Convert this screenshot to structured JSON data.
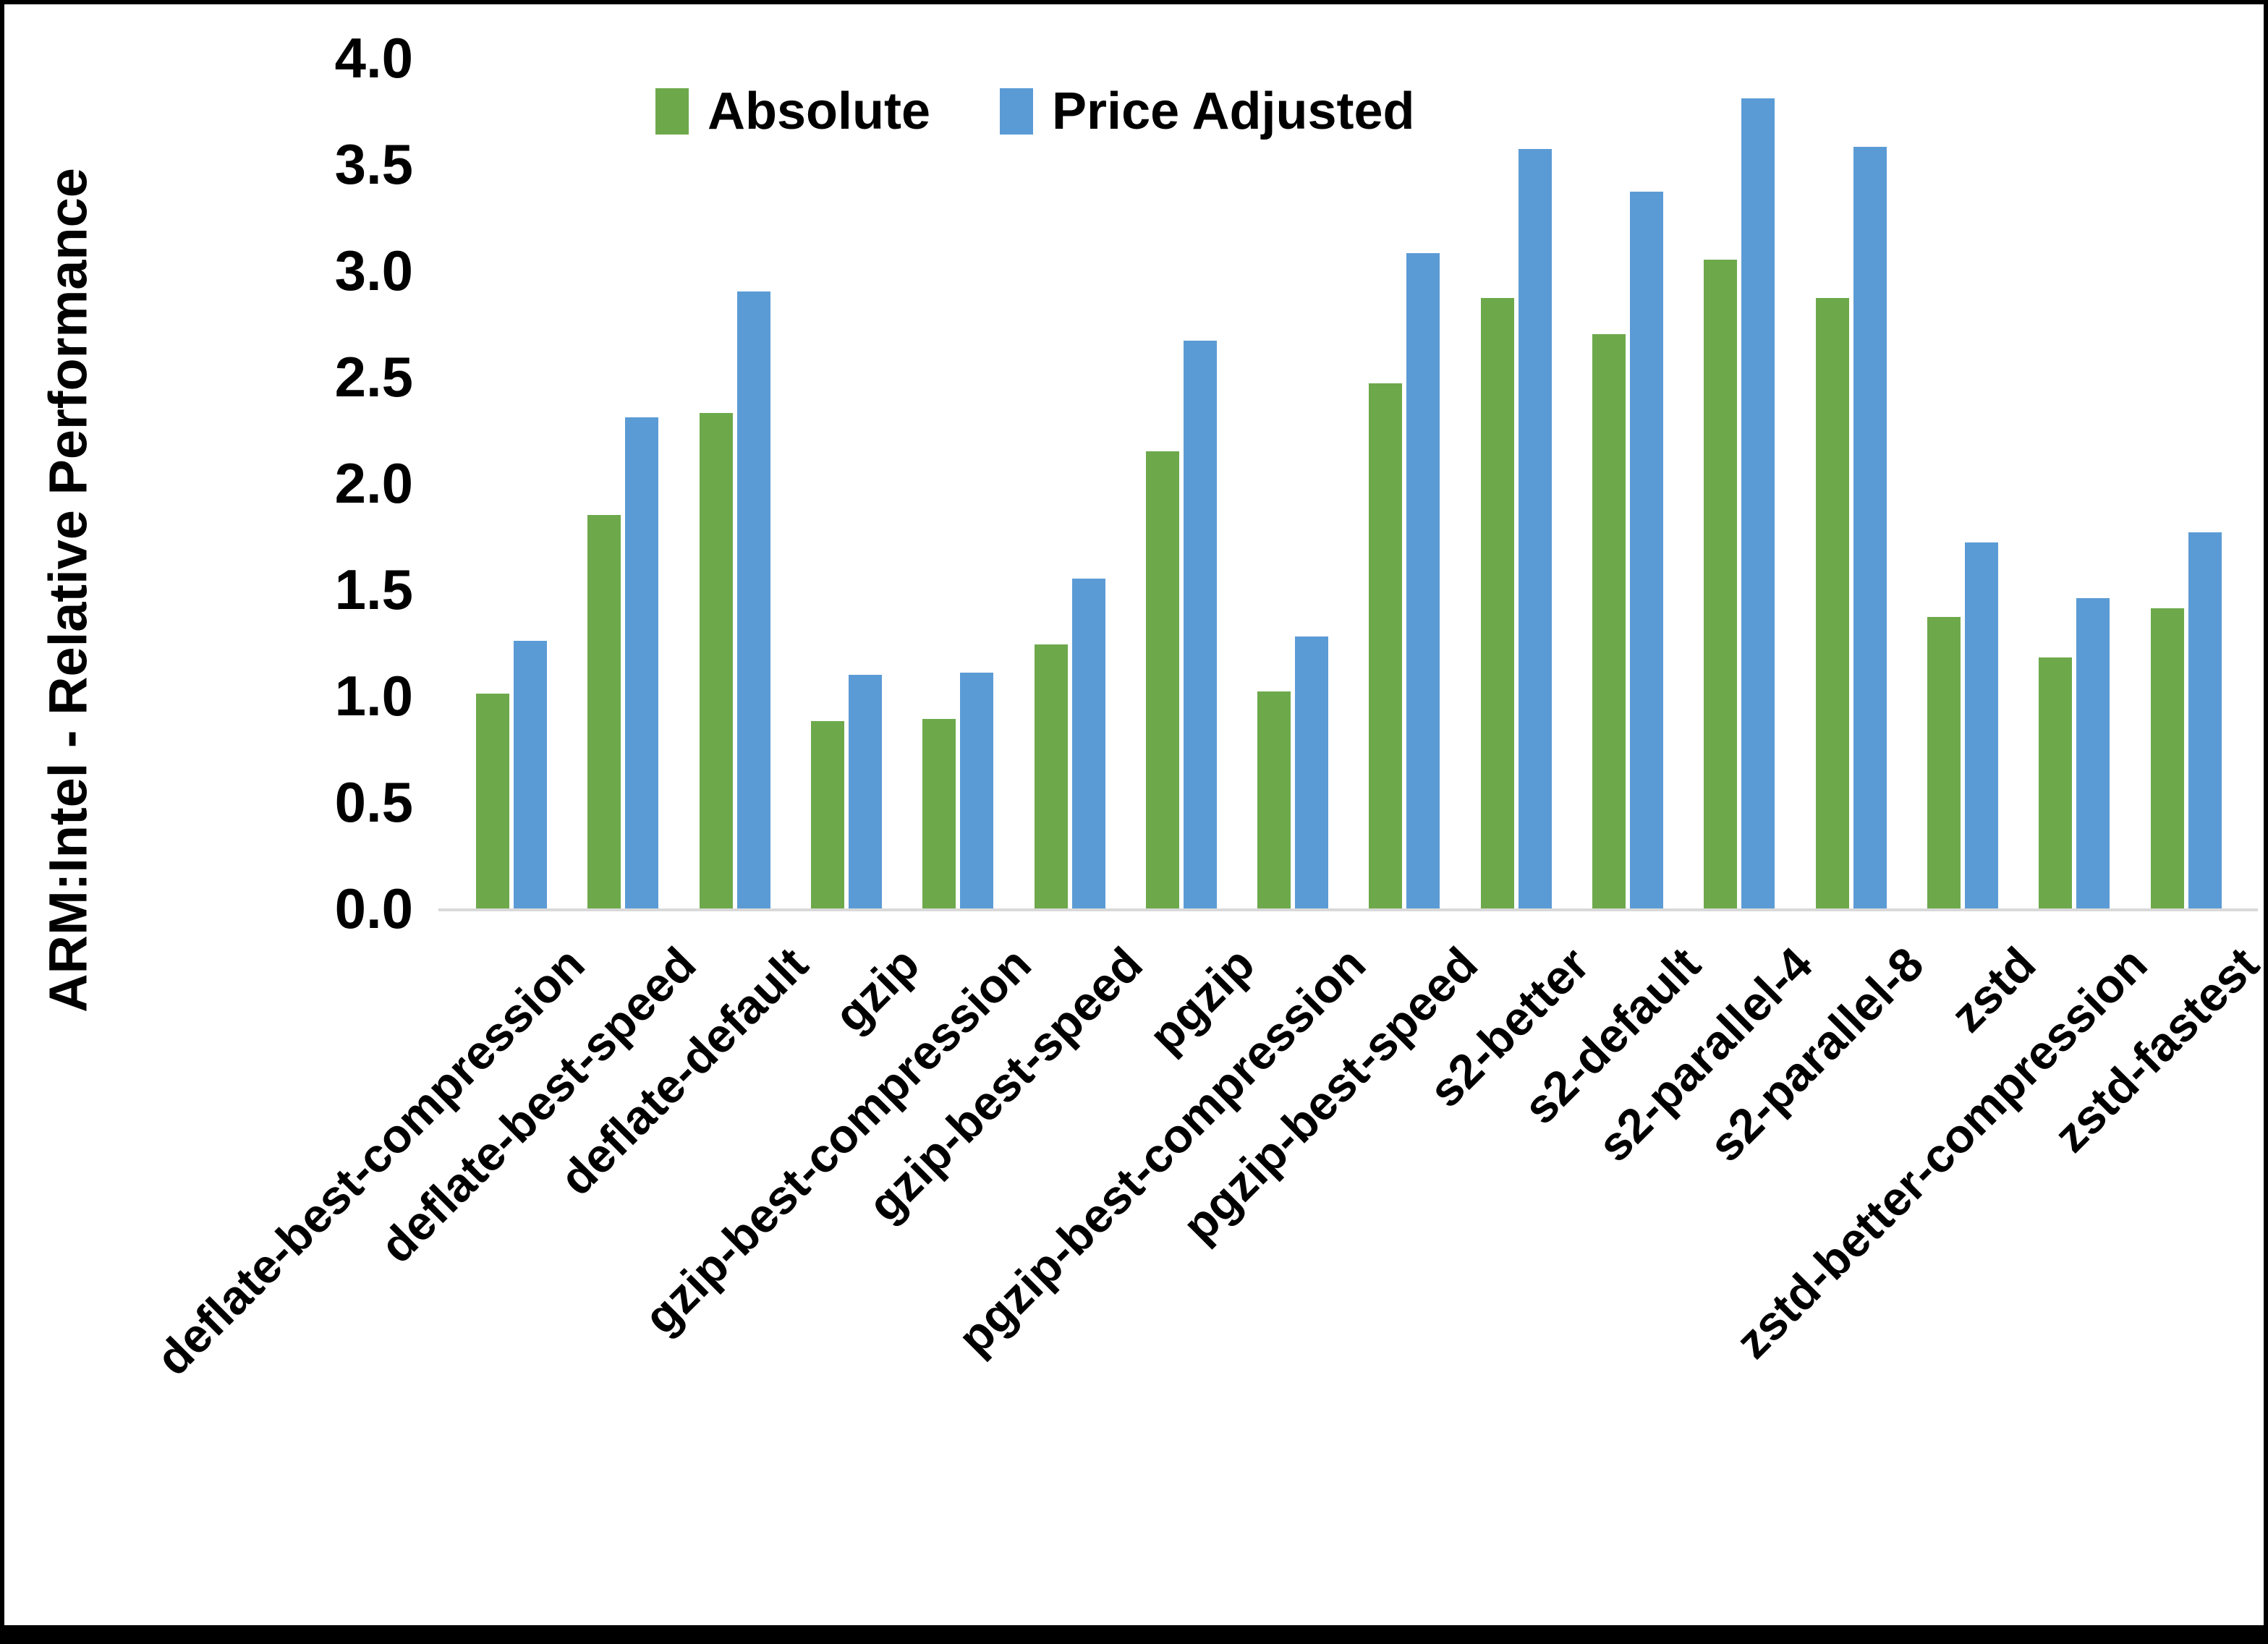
{
  "chart_data": {
    "type": "bar",
    "title": "",
    "xlabel": "",
    "ylabel": "ARM:Intel - Relative Performance",
    "ylim": [
      0.0,
      4.0
    ],
    "ytick_step": 0.5,
    "ytick_labels": [
      "0.0",
      "0.5",
      "1.0",
      "1.5",
      "2.0",
      "2.5",
      "3.0",
      "3.5",
      "4.0"
    ],
    "grid": false,
    "legend_position": "top-center-inside",
    "categories": [
      "deflate-best-compression",
      "deflate-best-speed",
      "deflate-default",
      "gzip",
      "gzip-best-compression",
      "gzip-best-speed",
      "pgzip",
      "pgzip-best-compression",
      "pgzip-best-speed",
      "s2-better",
      "s2-default",
      "s2-parallel-4",
      "s2-parallel-8",
      "zstd",
      "zstd-better-compression",
      "zstd-fastest"
    ],
    "series": [
      {
        "name": "Absolute",
        "color": "#6DA94B",
        "values": [
          1.01,
          1.85,
          2.33,
          0.88,
          0.89,
          1.24,
          2.15,
          1.02,
          2.47,
          2.87,
          2.7,
          3.05,
          2.87,
          1.37,
          1.18,
          1.41
        ]
      },
      {
        "name": "Price Adjusted",
        "color": "#5B9BD5",
        "values": [
          1.26,
          2.31,
          2.9,
          1.1,
          1.11,
          1.55,
          2.67,
          1.28,
          3.08,
          3.57,
          3.37,
          3.81,
          3.58,
          1.72,
          1.46,
          1.77
        ]
      }
    ]
  },
  "colors": {
    "background": "#FFFFFF",
    "frame": "#000000",
    "axis_line": "#D9D9D9",
    "text": "#000000"
  }
}
